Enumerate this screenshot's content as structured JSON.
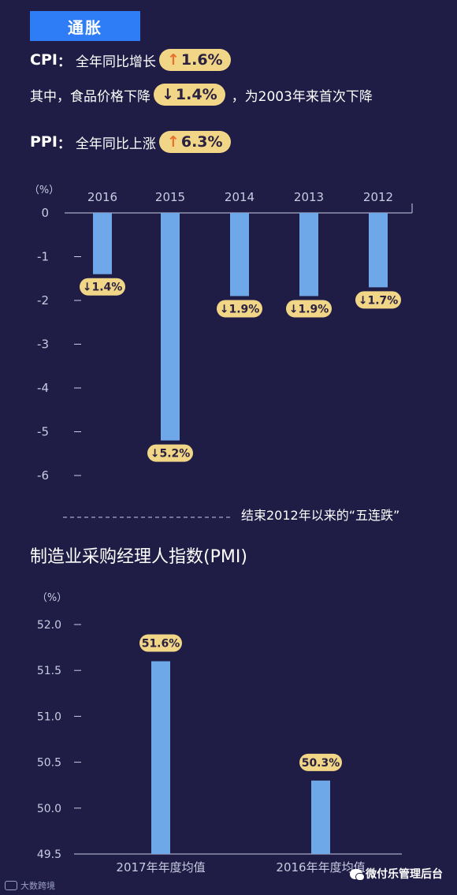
{
  "header": {
    "title": "通胀"
  },
  "cpi": {
    "key": "CPI",
    "colon": "：",
    "desc": "全年同比增长",
    "value": "1.6%",
    "arrow": "↑"
  },
  "food": {
    "prefix": "其中，食品价格下降",
    "value": "1.4%",
    "arrow": "↓",
    "suffix": "，为2003年来首次下降"
  },
  "ppi": {
    "key": "PPI",
    "colon": "：",
    "desc": "全年同比上涨",
    "value": "6.3%",
    "arrow": "↑"
  },
  "chart1_note": "结束2012年以来的“五连跌”",
  "section2_title": "制造业采购经理人指数(PMI)",
  "footer": {
    "left_brand": "大数跨境",
    "right_brand": "微付乐管理后台"
  },
  "colors": {
    "bar": "#6fa8e8",
    "pill": "#f1d687",
    "background": "#1f1d45",
    "accent_blue": "#2e7df7",
    "up_arrow": "#e8702a"
  },
  "chart_data": [
    {
      "type": "bar",
      "ylabel": "（%）",
      "categories": [
        "2016",
        "2015",
        "2014",
        "2013",
        "2012"
      ],
      "values": [
        -1.4,
        -5.2,
        -1.9,
        -1.9,
        -1.7
      ],
      "value_labels": [
        "↓1.4%",
        "↓5.2%",
        "↓1.9%",
        "↓1.9%",
        "↓1.7%"
      ],
      "yticks": [
        "0",
        "-1",
        "-2",
        "-3",
        "-4",
        "-5",
        "-6"
      ],
      "ylim": [
        -6,
        0
      ],
      "xaxis_position": "top"
    },
    {
      "type": "bar",
      "ylabel": "（%）",
      "categories": [
        "2017年年度均值",
        "2016年年度均值"
      ],
      "values": [
        51.6,
        50.3
      ],
      "value_labels": [
        "51.6%",
        "50.3%"
      ],
      "yticks": [
        "52.0",
        "51.5",
        "51.0",
        "50.5",
        "50.0",
        "49.5"
      ],
      "ylim": [
        49.5,
        52.0
      ]
    }
  ]
}
